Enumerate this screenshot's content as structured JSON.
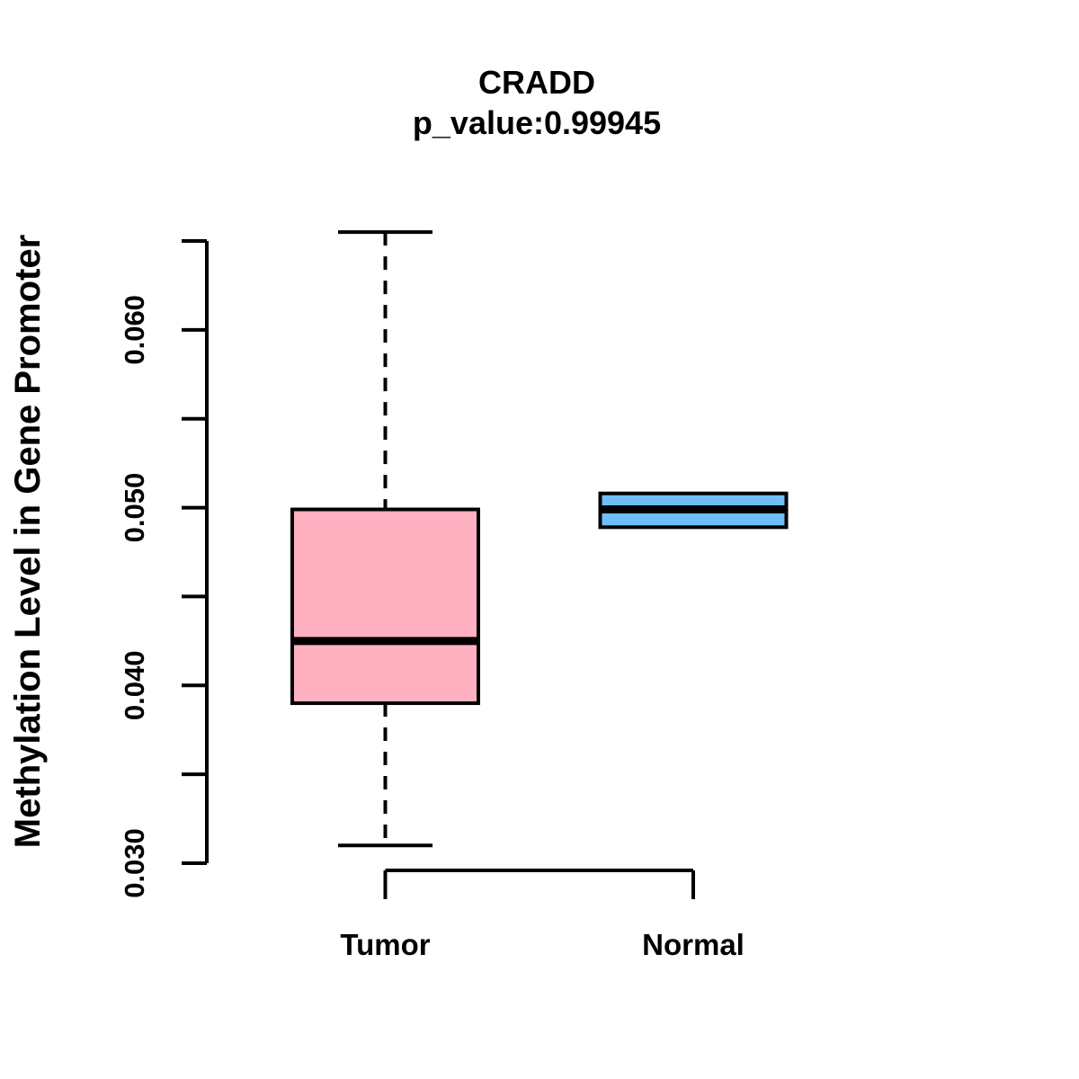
{
  "chart": {
    "title": "CRADD",
    "subtitle": "p_value:0.99945",
    "ylabel": "Methylation Level in Gene Promoter"
  },
  "chart_data": {
    "type": "boxplot",
    "title": "CRADD",
    "subtitle": "p_value:0.99945",
    "xlabel": "",
    "ylabel": "Methylation Level in Gene Promoter",
    "categories": [
      "Tumor",
      "Normal"
    ],
    "boxes": [
      {
        "category": "Tumor",
        "whisker_low": 0.031,
        "q1": 0.039,
        "median": 0.0425,
        "q3": 0.0499,
        "whisker_high": 0.0655,
        "fill": "#ffb1c1"
      },
      {
        "category": "Normal",
        "whisker_low": 0.0489,
        "q1": 0.0489,
        "median": 0.0499,
        "q3": 0.0508,
        "whisker_high": 0.0508,
        "fill": "#6fbef7"
      }
    ],
    "y_axis": {
      "min": 0.03,
      "max": 0.065,
      "tick_step": 0.005,
      "labeled_ticks": [
        0.03,
        0.04,
        0.05,
        0.06
      ],
      "tick_labels": [
        "0.030",
        "0.040",
        "0.050",
        "0.060"
      ],
      "decimals": 3
    },
    "grid": false,
    "legend": null,
    "colors": {
      "axis": "#000000",
      "text": "#000000",
      "tumor_fill": "#ffb1c1",
      "normal_fill": "#6fbef7",
      "background": "#ffffff"
    }
  }
}
